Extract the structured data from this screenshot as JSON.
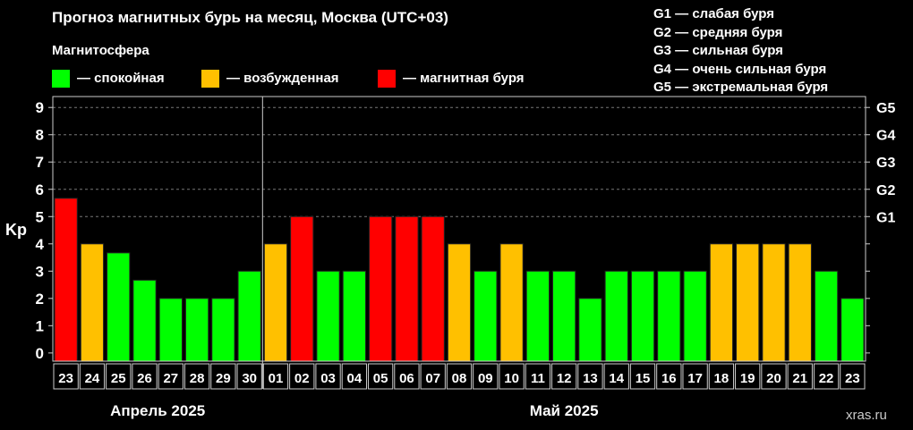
{
  "title": "Прогноз магнитных бурь на месяц, Москва (UTC+03)",
  "legend_title": "Магнитосфера",
  "legend": [
    {
      "label": "— спокойная",
      "color": "#00ff00"
    },
    {
      "label": "— возбужденная",
      "color": "#ffc000"
    },
    {
      "label": "— магнитная буря",
      "color": "#ff0000"
    }
  ],
  "g_legend": [
    "G1 — слабая буря",
    "G2 — средняя буря",
    "G3 — сильная буря",
    "G4 — очень сильная буря",
    "G5 — экстремальная буря"
  ],
  "watermark": "xras.ru",
  "chart_data": {
    "type": "bar",
    "ylabel": "Kp",
    "ylim": [
      0,
      9
    ],
    "yticks": [
      0,
      1,
      2,
      3,
      4,
      5,
      6,
      7,
      8,
      9
    ],
    "right_ticks": [
      {
        "value": 5,
        "label": "G1"
      },
      {
        "value": 6,
        "label": "G2"
      },
      {
        "value": 7,
        "label": "G3"
      },
      {
        "value": 8,
        "label": "G4"
      },
      {
        "value": 9,
        "label": "G5"
      }
    ],
    "grid": "dashed horizontal",
    "months": [
      {
        "label": "Апрель 2025",
        "count": 8
      },
      {
        "label": "Май 2025",
        "count": 23
      }
    ],
    "categories": [
      "23",
      "24",
      "25",
      "26",
      "27",
      "28",
      "29",
      "30",
      "01",
      "02",
      "03",
      "04",
      "05",
      "06",
      "07",
      "08",
      "09",
      "10",
      "11",
      "12",
      "13",
      "14",
      "15",
      "16",
      "17",
      "18",
      "19",
      "20",
      "21",
      "22",
      "23"
    ],
    "values": [
      5.67,
      4,
      3.67,
      2.67,
      2,
      2,
      2,
      3,
      4,
      5,
      3,
      3,
      5,
      5,
      5,
      4,
      3,
      4,
      3,
      3,
      2,
      3,
      3,
      3,
      3,
      4,
      4,
      4,
      4,
      3,
      2
    ]
  }
}
